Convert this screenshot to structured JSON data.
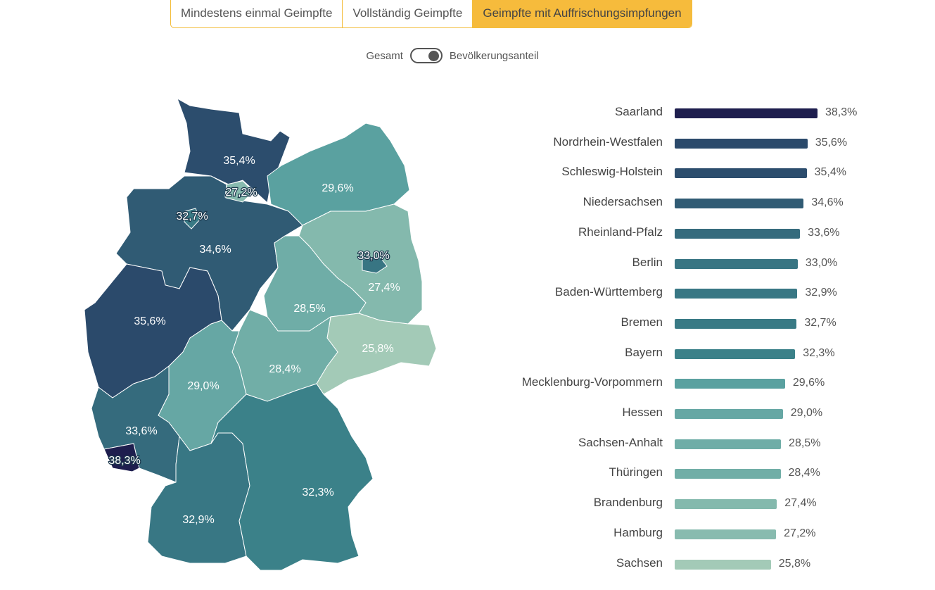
{
  "tabs": [
    {
      "label": "Mindestens einmal Geimpfte",
      "active": false
    },
    {
      "label": "Vollständig Geimpfte",
      "active": false
    },
    {
      "label": "Geimpfte mit Auffrischungsimpfungen",
      "active": true
    }
  ],
  "toggle": {
    "left_label": "Gesamt",
    "right_label": "Bevölkerungsanteil",
    "state": "Bevölkerungsanteil"
  },
  "colors": {
    "accent": "#f6bb3c",
    "min": "#a3cab7",
    "mid": "#3b8189",
    "max": "#1e1e4e"
  },
  "chart_data": {
    "type": "bar",
    "orientation": "horizontal",
    "map": "choropleth Germany by state",
    "categories": [
      "Saarland",
      "Nordrhein-Westfalen",
      "Schleswig-Holstein",
      "Niedersachsen",
      "Rheinland-Pfalz",
      "Berlin",
      "Baden-Württemberg",
      "Bremen",
      "Bayern",
      "Mecklenburg-Vorpommern",
      "Hessen",
      "Sachsen-Anhalt",
      "Thüringen",
      "Brandenburg",
      "Hamburg",
      "Sachsen"
    ],
    "values": [
      38.3,
      35.6,
      35.4,
      34.6,
      33.6,
      33.0,
      32.9,
      32.7,
      32.3,
      29.6,
      29.0,
      28.5,
      28.4,
      27.4,
      27.2,
      25.8
    ],
    "labels": [
      "38,3%",
      "35,6%",
      "35,4%",
      "34,6%",
      "33,6%",
      "33,0%",
      "32,9%",
      "32,7%",
      "32,3%",
      "29,6%",
      "29,0%",
      "28,5%",
      "28,4%",
      "27,4%",
      "27,2%",
      "25,8%"
    ],
    "unit": "%",
    "xlim": [
      0,
      38.3
    ]
  }
}
